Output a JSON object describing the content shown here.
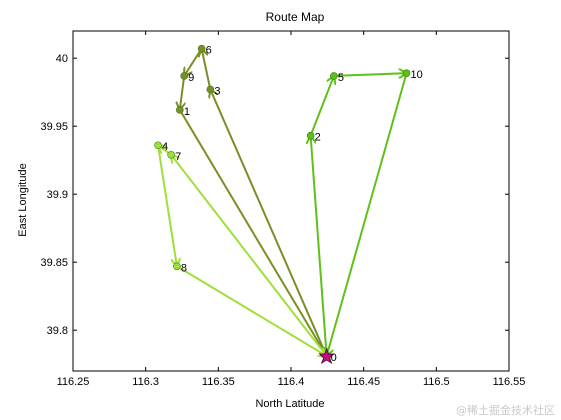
{
  "chart_data": {
    "type": "line",
    "title": "Route Map",
    "xlabel": "North Latitude",
    "ylabel": "East Longitude",
    "xlim": [
      116.25,
      116.55
    ],
    "ylim": [
      39.77,
      40.02
    ],
    "x_ticks": [
      116.25,
      116.3,
      116.35,
      116.4,
      116.45,
      116.5,
      116.55
    ],
    "x_tick_labels": [
      "116.25",
      "116.3",
      "116.35",
      "116.4",
      "116.45",
      "116.5",
      "116.55"
    ],
    "y_ticks": [
      39.8,
      39.85,
      39.9,
      39.95,
      40.0
    ],
    "y_tick_labels": [
      "39.8",
      "39.85",
      "39.9",
      "39.95",
      "40"
    ],
    "grid": false,
    "nodes": [
      {
        "label": "0",
        "x": 116.4245,
        "y": 39.781
      },
      {
        "label": "1",
        "x": 116.3235,
        "y": 39.962
      },
      {
        "label": "2",
        "x": 116.4135,
        "y": 39.943
      },
      {
        "label": "3",
        "x": 116.3445,
        "y": 39.977
      },
      {
        "label": "4",
        "x": 116.3085,
        "y": 39.936
      },
      {
        "label": "5",
        "x": 116.4295,
        "y": 39.987
      },
      {
        "label": "6",
        "x": 116.3385,
        "y": 40.007
      },
      {
        "label": "7",
        "x": 116.3175,
        "y": 39.929
      },
      {
        "label": "8",
        "x": 116.3215,
        "y": 39.847
      },
      {
        "label": "9",
        "x": 116.3265,
        "y": 39.987
      },
      {
        "label": "10",
        "x": 116.4795,
        "y": 39.989
      }
    ],
    "series": [
      {
        "color": "#7a8e26",
        "path": [
          0,
          3,
          6,
          9,
          1,
          0
        ]
      },
      {
        "color": "#5dc218",
        "path": [
          0,
          2,
          5,
          10,
          0
        ]
      },
      {
        "color": "#9ee03a",
        "path": [
          0,
          7,
          4,
          8,
          0
        ]
      }
    ],
    "depot_marker_color": "#c01080"
  },
  "watermark": "@稀土掘金技术社区"
}
